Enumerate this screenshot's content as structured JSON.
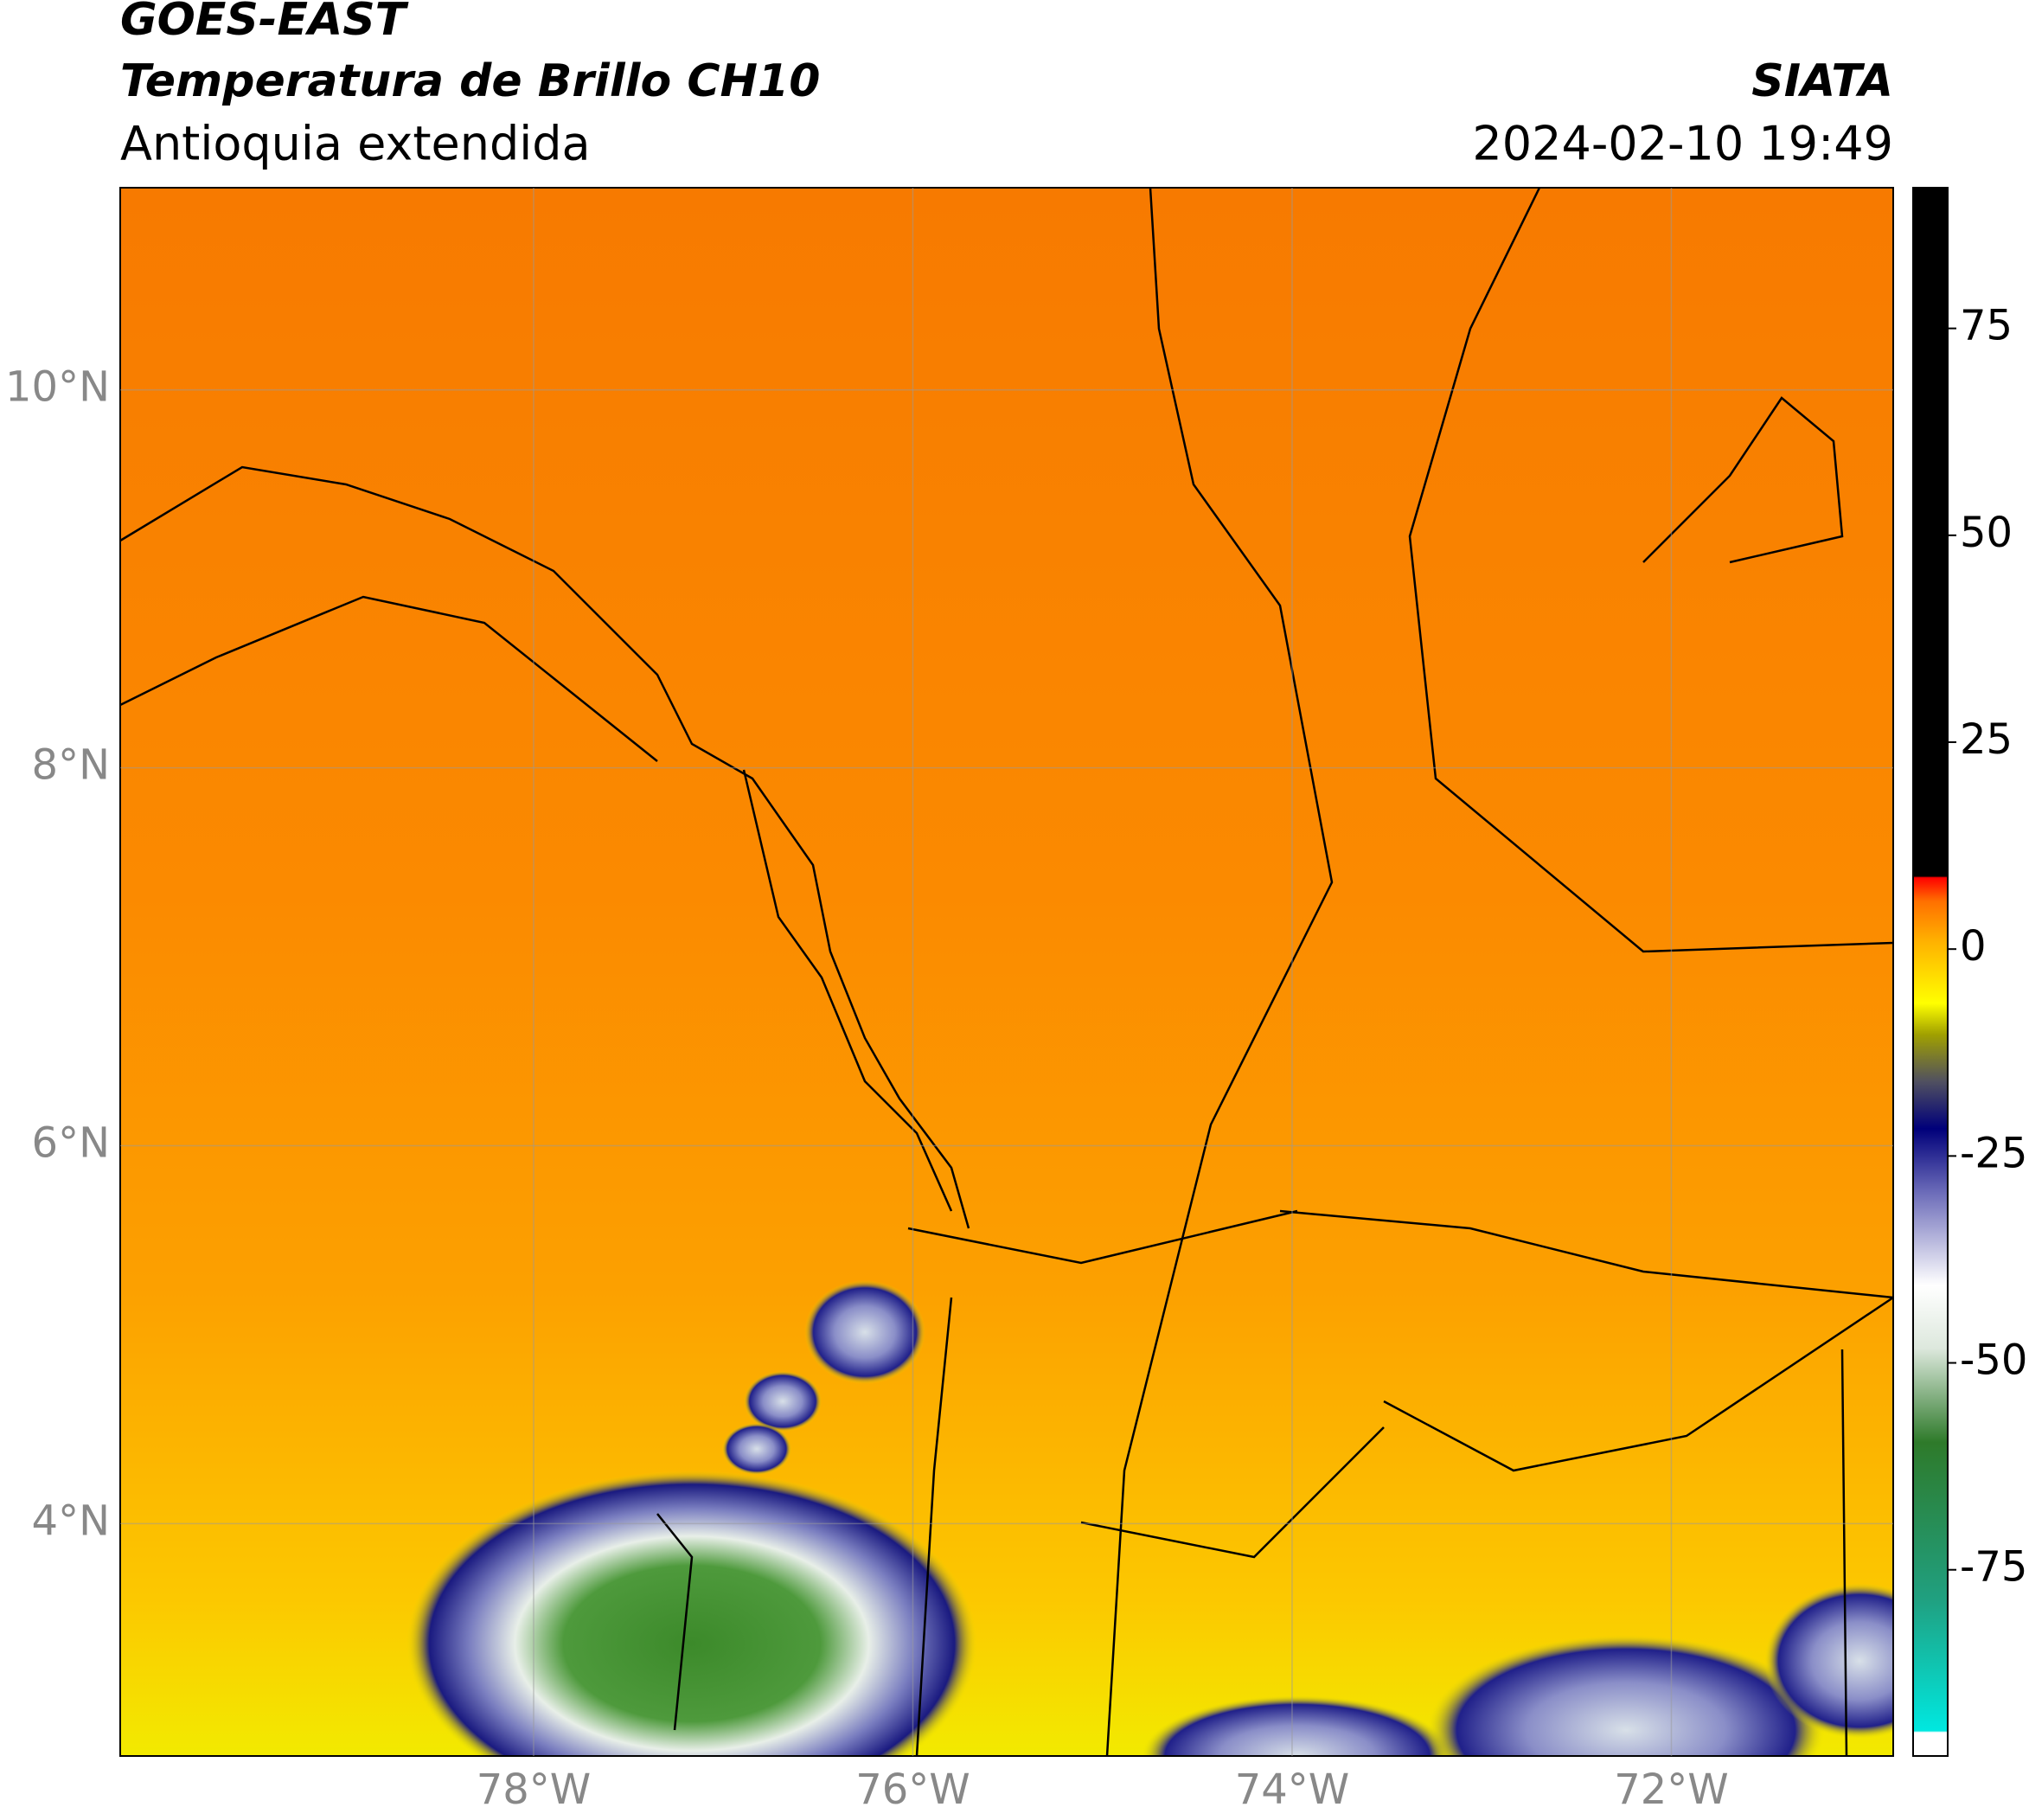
{
  "map": {
    "title": "GOES-EAST",
    "subtitle": "Temperatura de Brillo CH10",
    "region": "Antioquia extendida",
    "source": "SIATA",
    "datetime": "2024-02-10 19:49",
    "xlim": [
      -80.18,
      -70.83
    ],
    "ylim": [
      2.77,
      11.07
    ],
    "xticks": [
      {
        "value": -78,
        "label": "78°W"
      },
      {
        "value": -76,
        "label": "76°W"
      },
      {
        "value": -74,
        "label": "74°W"
      },
      {
        "value": -72,
        "label": "72°W"
      }
    ],
    "yticks": [
      {
        "value": 4,
        "label": "4°N"
      },
      {
        "value": 6,
        "label": "6°N"
      },
      {
        "value": 8,
        "label": "8°N"
      },
      {
        "value": 10,
        "label": "10°N"
      }
    ],
    "grid": true,
    "colorbar": {
      "lim": [
        -97.5,
        92
      ],
      "ticks": [
        -75,
        -50,
        -25,
        0,
        25,
        50,
        75
      ]
    }
  }
}
